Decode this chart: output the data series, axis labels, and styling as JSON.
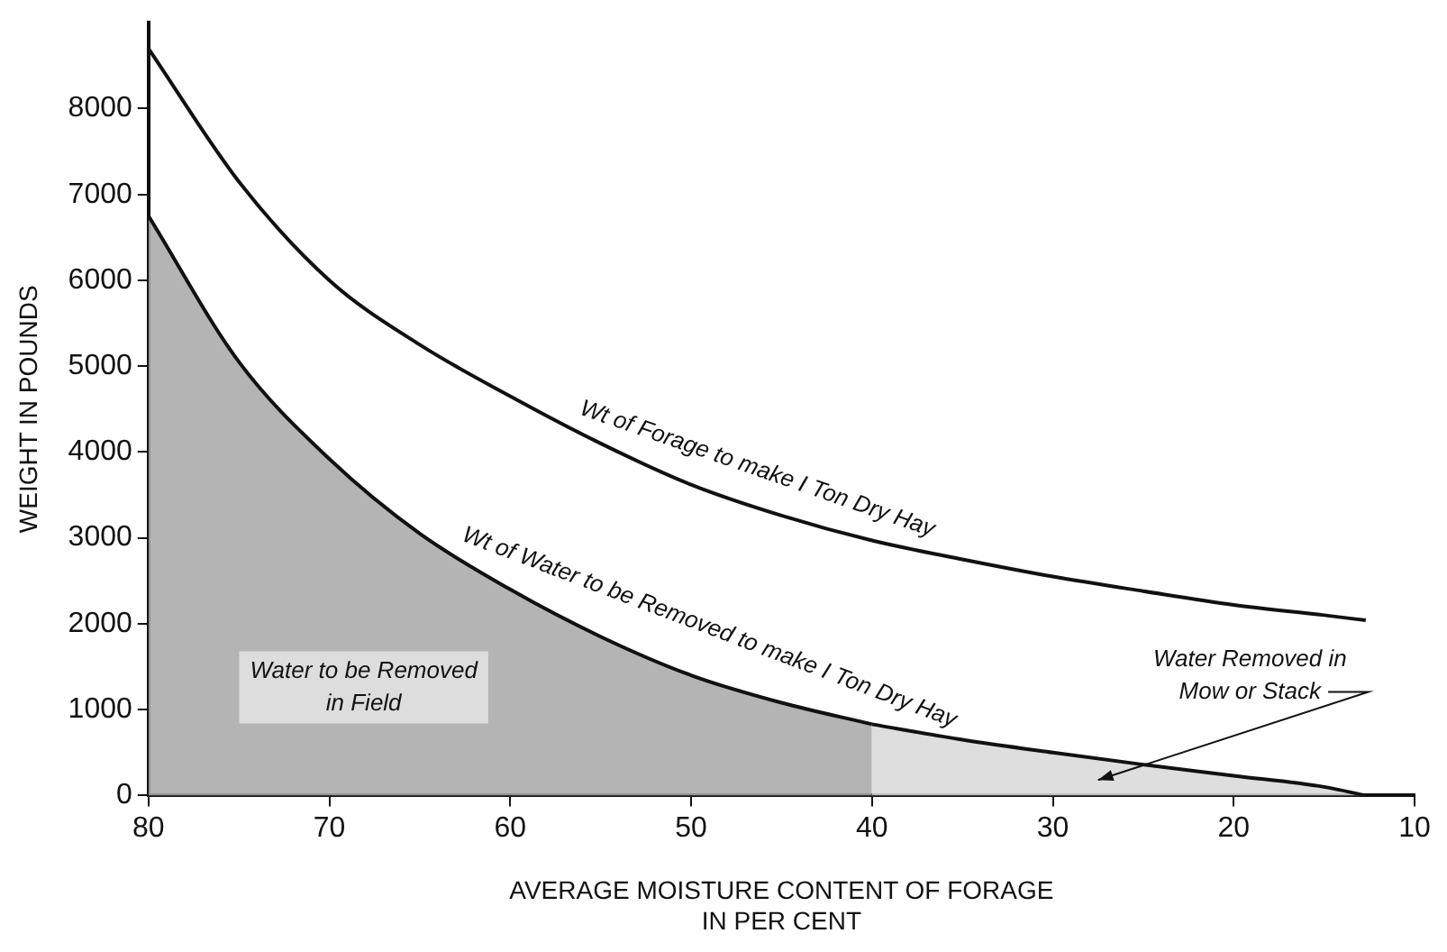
{
  "chart_data": {
    "type": "line",
    "xlabel": "AVERAGE MOISTURE CONTENT OF FORAGE\nIN PER CENT",
    "ylabel": "WEIGHT IN POUNDS",
    "xlim": [
      80,
      10
    ],
    "xticks": [
      80,
      70,
      60,
      50,
      40,
      30,
      20,
      10
    ],
    "ylim": [
      0,
      9000
    ],
    "yticks": [
      0,
      1000,
      2000,
      3000,
      4000,
      5000,
      6000,
      7000,
      8000
    ],
    "grid": false,
    "legend": false,
    "marker": "none",
    "line_style": "solid",
    "series": [
      {
        "type": "line",
        "color": "#111111",
        "x": [
          80,
          75,
          70,
          65,
          60,
          55,
          50,
          45,
          40,
          35,
          30,
          25,
          20,
          15,
          12.7
        ],
        "values": [
          8700,
          7150,
          6000,
          5250,
          4650,
          4100,
          3620,
          3260,
          2970,
          2750,
          2550,
          2380,
          2220,
          2100,
          2040
        ]
      },
      {
        "type": "area",
        "color": "#a9a9a9",
        "x": [
          80,
          75,
          70,
          65,
          60,
          55,
          50,
          45,
          40
        ],
        "values": [
          6750,
          5050,
          3920,
          3050,
          2400,
          1850,
          1400,
          1080,
          830
        ]
      },
      {
        "type": "area",
        "color": "#d9d9d9",
        "x": [
          40,
          35,
          30,
          25,
          20,
          15,
          12.7
        ],
        "values": [
          830,
          650,
          500,
          360,
          230,
          100,
          0
        ]
      }
    ],
    "annotations": [
      {
        "text": "Wt of Forage to make I Ton Dry Hay",
        "x": 47,
        "y": 3350
      },
      {
        "text": "Wt of Water to be Removed to make I Ton Dry Hay",
        "x": 50,
        "y": 1380
      },
      "Water to be Removed\nin Field",
      "Water Removed in\nMow or Stack"
    ]
  }
}
